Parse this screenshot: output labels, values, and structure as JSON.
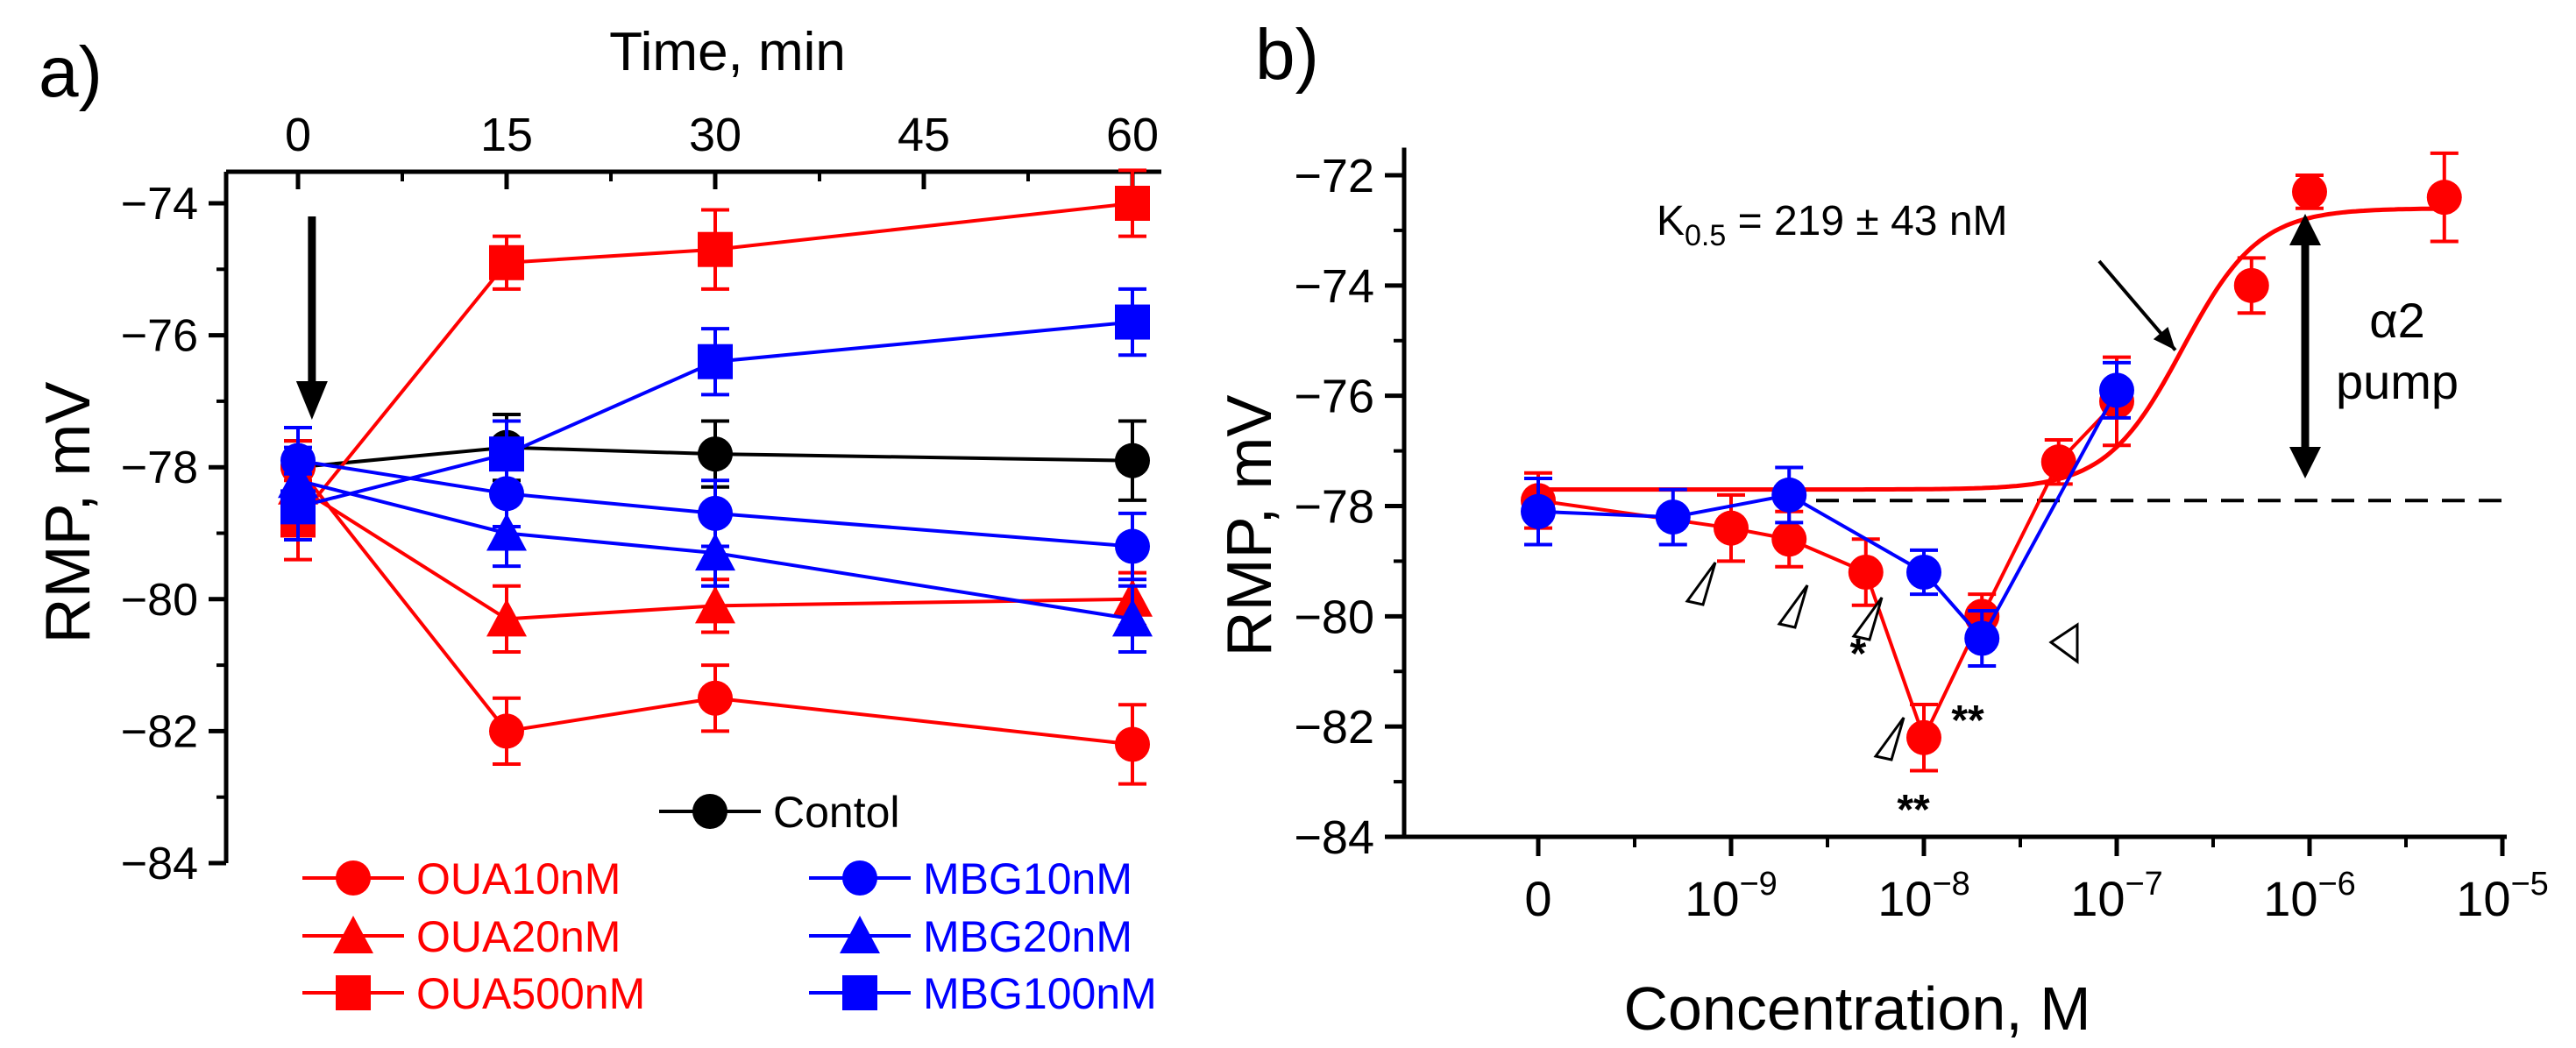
{
  "colors": {
    "red": "#ff0000",
    "blue": "#0000ff",
    "black": "#000000"
  },
  "chart_data": [
    {
      "panel_label": "a)",
      "type": "line",
      "xlabel": "Time, min",
      "ylabel": "RMP, mV",
      "x_ticks": [
        "0",
        "15",
        "30",
        "45",
        "60"
      ],
      "xlim": [
        0,
        60
      ],
      "y_ticks": [
        "-74",
        "-76",
        "-78",
        "-80",
        "-82",
        "-84"
      ],
      "ylim": [
        -84,
        -73.5
      ],
      "grid": false,
      "legend_position": "bottom",
      "series": [
        {
          "name": "Contol",
          "color": "black",
          "marker": "circle",
          "x": [
            0,
            15,
            30,
            60
          ],
          "y": [
            -78.0,
            -77.7,
            -77.8,
            -77.9
          ],
          "err": [
            0.4,
            0.5,
            0.5,
            0.6
          ]
        },
        {
          "name": "OUA10nM",
          "color": "red",
          "marker": "circle",
          "x": [
            0,
            15,
            30,
            60
          ],
          "y": [
            -78.0,
            -82.0,
            -81.5,
            -82.2
          ],
          "err": [
            0.4,
            0.5,
            0.5,
            0.6
          ]
        },
        {
          "name": "OUA20nM",
          "color": "red",
          "marker": "triangle",
          "x": [
            0,
            15,
            30,
            60
          ],
          "y": [
            -78.3,
            -80.3,
            -80.1,
            -80.0
          ],
          "err": [
            0.4,
            0.5,
            0.4,
            0.4
          ]
        },
        {
          "name": "OUA500nM",
          "color": "red",
          "marker": "square",
          "x": [
            0,
            15,
            30,
            60
          ],
          "y": [
            -78.8,
            -74.9,
            -74.7,
            -74.0
          ],
          "err": [
            0.6,
            0.4,
            0.6,
            0.5
          ]
        },
        {
          "name": "MBG10nM",
          "color": "blue",
          "marker": "circle",
          "x": [
            0,
            15,
            30,
            60
          ],
          "y": [
            -77.9,
            -78.4,
            -78.7,
            -79.2
          ],
          "err": [
            0.5,
            0.5,
            0.5,
            0.5
          ]
        },
        {
          "name": "MBG20nM",
          "color": "blue",
          "marker": "triangle",
          "x": [
            0,
            15,
            30,
            60
          ],
          "y": [
            -78.2,
            -79.0,
            -79.3,
            -80.3
          ],
          "err": [
            0.5,
            0.5,
            0.5,
            0.5
          ]
        },
        {
          "name": "MBG100nM",
          "color": "blue",
          "marker": "square",
          "x": [
            0,
            15,
            30,
            60
          ],
          "y": [
            -78.6,
            -77.8,
            -76.4,
            -75.8
          ],
          "err": [
            0.5,
            0.5,
            0.5,
            0.5
          ]
        }
      ],
      "annotations": [
        {
          "type": "arrow-down",
          "x": 1,
          "y_from": -74.2,
          "y_to": -77.2
        }
      ]
    },
    {
      "panel_label": "b)",
      "type": "line",
      "xlabel": "Concentration, M",
      "ylabel": "RMP, mV",
      "x_scale": "log",
      "x_ticks": [
        {
          "base": "0",
          "exp": "",
          "value": 0
        },
        {
          "base": "10",
          "exp": "-9",
          "value": 1e-09
        },
        {
          "base": "10",
          "exp": "-8",
          "value": 1e-08
        },
        {
          "base": "10",
          "exp": "-7",
          "value": 1e-07
        },
        {
          "base": "10",
          "exp": "-6",
          "value": 1e-06
        },
        {
          "base": "10",
          "exp": "-5",
          "value": 1e-05
        }
      ],
      "y_ticks": [
        "-72",
        "-74",
        "-76",
        "-78",
        "-80",
        "-82",
        "-84"
      ],
      "ylim": [
        -84,
        -71.5
      ],
      "grid": false,
      "series": [
        {
          "name": "OUA",
          "color": "red",
          "marker": "circle",
          "x": [
            0,
            1e-09,
            2e-09,
            5e-09,
            1e-08,
            2e-08,
            5e-08,
            1e-07,
            5e-07,
            1e-06,
            5e-06
          ],
          "y": [
            -77.9,
            -78.4,
            -78.6,
            -79.2,
            -82.2,
            -80.0,
            -77.2,
            -76.1,
            -74.0,
            -72.3,
            -72.4
          ],
          "err": [
            0.5,
            0.6,
            0.5,
            0.6,
            0.6,
            0.4,
            0.4,
            0.8,
            0.5,
            0.3,
            0.8
          ]
        },
        {
          "name": "MBG",
          "color": "blue",
          "marker": "circle",
          "x": [
            0,
            5e-10,
            2e-09,
            1e-08,
            2e-08,
            1e-07
          ],
          "y": [
            -78.1,
            -78.2,
            -77.8,
            -79.2,
            -80.4,
            -75.9
          ],
          "err": [
            0.6,
            0.5,
            0.5,
            0.4,
            0.5,
            0.5
          ]
        }
      ],
      "fit_curve": {
        "color": "red",
        "bottom": -77.7,
        "top": -72.6,
        "k_half": 2.19e-07,
        "hill": 2.2,
        "from": 2e-09,
        "to": 5e-06
      },
      "reference_line": {
        "y": -77.9,
        "style": "dashed"
      },
      "annotations": {
        "k_half_label": {
          "main": "K",
          "sub": "0.5",
          "rest": " = 219 ± 43 nM"
        },
        "alpha2_label": [
          "α2",
          "pump"
        ],
        "stars": [
          {
            "x": 5e-09,
            "text": "*"
          },
          {
            "x": 2e-08,
            "text": "**"
          },
          {
            "x": 1e-08,
            "text": "**"
          }
        ]
      }
    }
  ]
}
